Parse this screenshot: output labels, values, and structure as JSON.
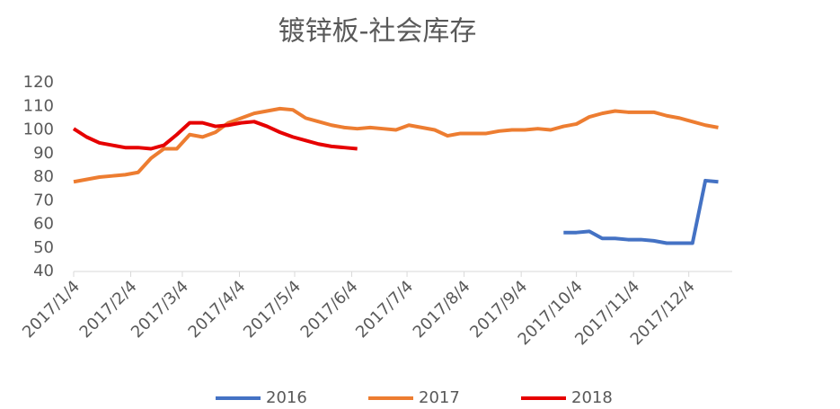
{
  "chart_data": {
    "type": "line",
    "title": "镀锌板-社会库存",
    "x": [
      "2017/1/4",
      "2017/1/11",
      "2017/1/18",
      "2017/1/25",
      "2017/2/1",
      "2017/2/8",
      "2017/2/15",
      "2017/2/22",
      "2017/3/1",
      "2017/3/8",
      "2017/3/15",
      "2017/3/22",
      "2017/3/29",
      "2017/4/5",
      "2017/4/12",
      "2017/4/19",
      "2017/4/26",
      "2017/5/3",
      "2017/5/10",
      "2017/5/17",
      "2017/5/24",
      "2017/5/31",
      "2017/6/7",
      "2017/6/14",
      "2017/6/21",
      "2017/6/28",
      "2017/7/5",
      "2017/7/12",
      "2017/7/19",
      "2017/7/26",
      "2017/8/2",
      "2017/8/9",
      "2017/8/16",
      "2017/8/23",
      "2017/8/30",
      "2017/9/6",
      "2017/9/13",
      "2017/9/20",
      "2017/9/27",
      "2017/10/4",
      "2017/10/11",
      "2017/10/18",
      "2017/10/25",
      "2017/11/1",
      "2017/11/8",
      "2017/11/15",
      "2017/11/22",
      "2017/11/29",
      "2017/12/6",
      "2017/12/13",
      "2017/12/20"
    ],
    "series": [
      {
        "name": "2016",
        "color": "#4472c4",
        "values": [
          null,
          null,
          null,
          null,
          null,
          null,
          null,
          null,
          null,
          null,
          null,
          null,
          null,
          null,
          null,
          null,
          null,
          null,
          null,
          null,
          null,
          null,
          null,
          null,
          null,
          null,
          null,
          null,
          null,
          null,
          null,
          null,
          null,
          null,
          null,
          null,
          null,
          null,
          56.5,
          56.5,
          57,
          54,
          54,
          53.5,
          53.5,
          53,
          52,
          52,
          52,
          78.5,
          78
        ]
      },
      {
        "name": "2017",
        "color": "#ed7d31",
        "values": [
          78,
          79,
          80,
          80.5,
          81,
          82,
          88,
          92,
          92,
          98,
          97,
          99,
          103,
          105,
          107,
          108,
          109,
          108.5,
          105,
          103.5,
          102,
          101,
          100.5,
          101,
          100.5,
          100,
          102,
          101,
          100,
          97.5,
          98.5,
          98.5,
          98.5,
          99.5,
          100,
          100,
          100.5,
          100,
          101.5,
          102.5,
          105.5,
          107,
          108,
          107.5,
          107.5,
          107.5,
          106,
          105,
          103.5,
          102,
          101
        ]
      },
      {
        "name": "2018",
        "color": "#e60000",
        "values": [
          100.5,
          97,
          94.5,
          93.5,
          92.5,
          92.5,
          92,
          93.5,
          98,
          103,
          103,
          101.5,
          102,
          103,
          103.5,
          101.5,
          99,
          97,
          95.5,
          94,
          93,
          92.5,
          92,
          null,
          null,
          null,
          null,
          null,
          null,
          null,
          null,
          null,
          null,
          null,
          null,
          null,
          null,
          null,
          null,
          null,
          null,
          null,
          null,
          null,
          null,
          null,
          null,
          null,
          null,
          null,
          null
        ]
      }
    ],
    "ylim": [
      40,
      120
    ],
    "yticks": [
      40,
      50,
      60,
      70,
      80,
      90,
      100,
      110,
      120
    ],
    "xticks": [
      "2017/1/4",
      "2017/2/4",
      "2017/3/4",
      "2017/4/4",
      "2017/5/4",
      "2017/6/4",
      "2017/7/4",
      "2017/8/4",
      "2017/9/4",
      "2017/10/4",
      "2017/11/4",
      "2017/12/4"
    ],
    "legend": "bottom"
  }
}
